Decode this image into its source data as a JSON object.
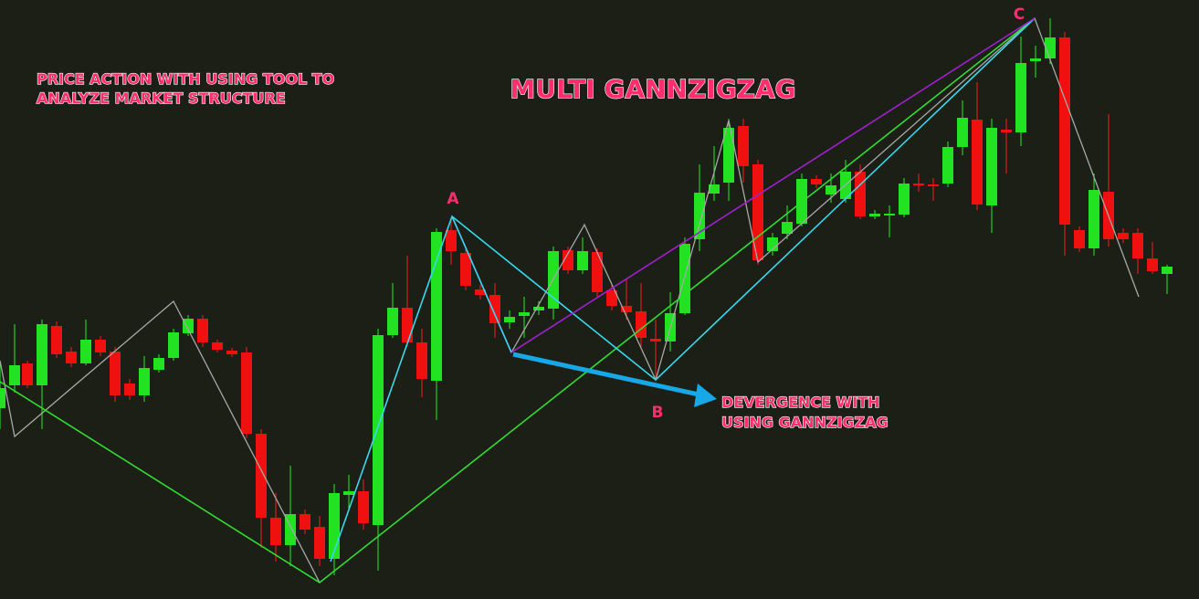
{
  "chart_data": {
    "type": "candlestick",
    "title": "MULTI GANNZIGZAG",
    "annotations": [
      "PRICE ACTION WITH USING TOOL TO",
      "ANALYZE MARKET STRUCTURE",
      "DEVERGENCE WITH",
      "USING GANNZIGZAG"
    ],
    "point_labels": [
      "A",
      "B",
      "C"
    ]
  }
}
